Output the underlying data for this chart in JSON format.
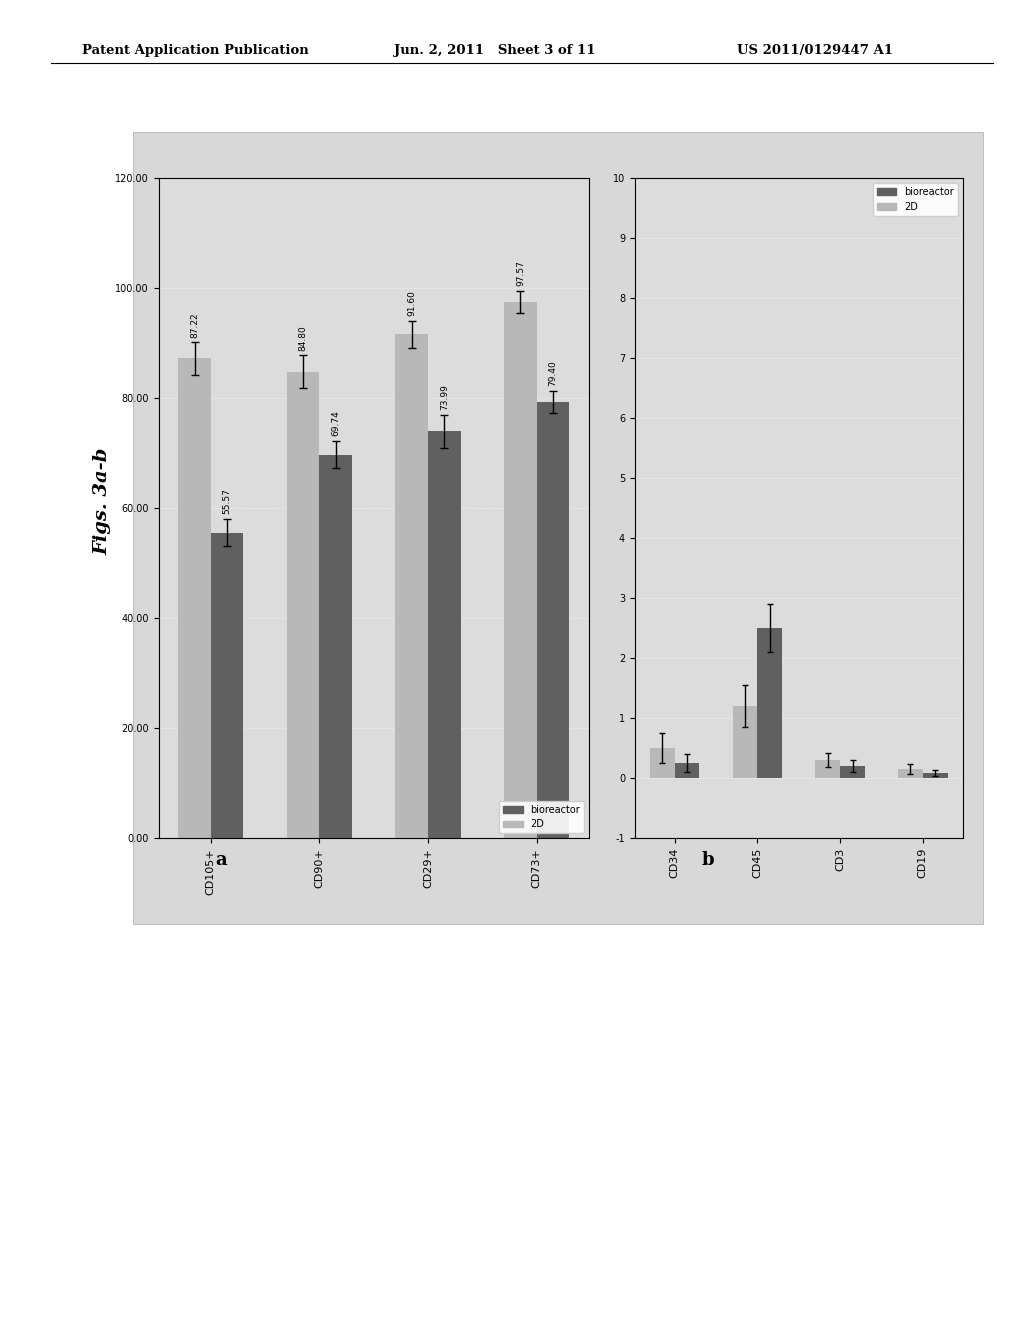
{
  "header_left": "Patent Application Publication",
  "header_middle": "Jun. 2, 2011   Sheet 3 of 11",
  "header_right": "US 2011/0129447 A1",
  "fig_label": "Figs. 3a-b",
  "panel_a_label": "a",
  "panel_b_label": "b",
  "chart_a": {
    "categories": [
      "CD105+",
      "CD90+",
      "CD29+",
      "CD73+"
    ],
    "values_2D": [
      87.22,
      84.8,
      91.6,
      97.57
    ],
    "values_bioreactor": [
      55.57,
      69.74,
      73.99,
      79.4
    ],
    "error_2D": [
      3.0,
      3.0,
      2.5,
      2.0
    ],
    "error_bioreactor": [
      2.5,
      2.5,
      3.0,
      2.0
    ],
    "xlim": [
      0,
      120
    ],
    "xticks": [
      0.0,
      20.0,
      40.0,
      60.0,
      80.0,
      100.0,
      120.0
    ],
    "color_2D": "#b8b8b8",
    "color_bioreactor": "#606060",
    "legend_2D": "2D",
    "legend_bioreactor": "bioreactor",
    "bg_color": "#dcdcdc"
  },
  "chart_b": {
    "categories": [
      "CD34",
      "CD45",
      "CD3",
      "CD19"
    ],
    "values_2D": [
      0.5,
      1.2,
      0.3,
      0.15
    ],
    "values_bioreactor": [
      0.25,
      2.5,
      0.2,
      0.08
    ],
    "error_2D": [
      0.25,
      0.35,
      0.12,
      0.08
    ],
    "error_bioreactor": [
      0.15,
      0.4,
      0.1,
      0.05
    ],
    "xlim": [
      -1,
      10
    ],
    "xticks": [
      -1,
      0,
      1,
      2,
      3,
      4,
      5,
      6,
      7,
      8,
      9,
      10
    ],
    "color_2D": "#b8b8b8",
    "color_bioreactor": "#606060",
    "legend_2D": "2D",
    "legend_bioreactor": "bioreactor",
    "bg_color": "#dcdcdc"
  },
  "outer_box_color": "#d0d0d0"
}
